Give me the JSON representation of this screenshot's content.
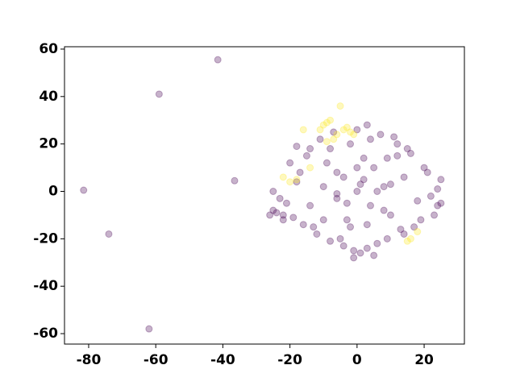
{
  "chart_data": {
    "type": "scatter",
    "xlim": [
      -87.2,
      32
    ],
    "ylim": [
      -64.4,
      61
    ],
    "xticks": [
      -80,
      -60,
      -40,
      -20,
      0,
      20
    ],
    "yticks": [
      -60,
      -40,
      -20,
      0,
      20,
      40,
      60
    ],
    "opacity": 0.3,
    "series": [
      {
        "color": "#440154",
        "x": [
          -81.5,
          -74,
          -59,
          -62,
          -41.5,
          -36.5,
          0,
          2,
          -3,
          5,
          -6,
          8,
          -10,
          10,
          -14,
          14,
          -18,
          18,
          -22,
          22,
          -25,
          24,
          -2,
          4,
          -8,
          12,
          -15,
          16,
          -20,
          20,
          -5,
          6,
          -12,
          9,
          1,
          -1,
          3,
          -4,
          0,
          7,
          -7,
          11,
          -11,
          15,
          -16,
          19,
          -19,
          23,
          -23,
          25,
          -3,
          3,
          -9,
          9,
          -13,
          13,
          -17,
          17,
          -21,
          21,
          2,
          -2,
          6,
          -6,
          10,
          -10,
          0,
          4,
          -4,
          8,
          -24,
          -26,
          -25,
          -22,
          24,
          25,
          -1,
          5,
          -8,
          14,
          1,
          -6,
          12,
          -14,
          3,
          -18
        ],
        "values": [
          0.5,
          -18,
          41,
          -58,
          55.5,
          4.5,
          0,
          5,
          -5,
          10,
          8,
          -8,
          2,
          3,
          -6,
          6,
          4,
          -4,
          -10,
          -2,
          -8,
          1,
          20,
          22,
          18,
          20,
          15,
          16,
          12,
          10,
          -20,
          -22,
          -18,
          -20,
          -26,
          -25,
          -24,
          -23,
          26,
          24,
          25,
          23,
          22,
          18,
          -14,
          -12,
          -11,
          -10,
          -3,
          5,
          -12,
          -14,
          12,
          14,
          -15,
          -16,
          8,
          -15,
          -5,
          8,
          14,
          -15,
          0,
          -3,
          -10,
          -12,
          10,
          -6,
          6,
          2,
          -9,
          -10,
          0,
          -12,
          -6,
          -5,
          -28,
          -27,
          -21,
          -18,
          3,
          -1,
          15,
          18,
          28,
          19
        ]
      },
      {
        "color": "#fde725",
        "x": [
          -10,
          -11,
          -9,
          -8,
          -5,
          -4,
          -3,
          -2,
          -1,
          -6,
          -16,
          -14,
          -18,
          -20,
          -22,
          18,
          16,
          15,
          -7,
          -9
        ],
        "values": [
          28,
          26,
          29,
          30,
          36,
          26,
          27,
          25,
          24,
          24,
          26,
          10,
          5,
          4,
          6,
          -17,
          -20,
          -21,
          22,
          21
        ]
      }
    ]
  }
}
